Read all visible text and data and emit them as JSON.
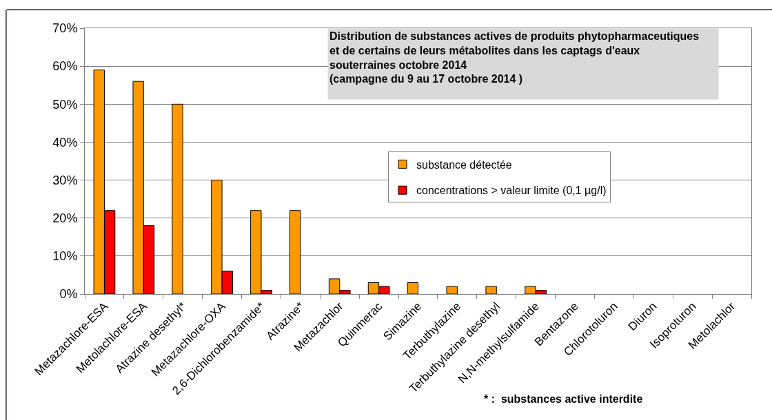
{
  "chart_data": {
    "type": "bar",
    "title": "Distribution de substances actives de produits phytopharmaceutiques\net de certains de leurs métabolites dans les captags d'eaux\nsouterraines octobre 2014\n(campagne du 9 au 17 octobre 2014 )",
    "categories": [
      "Metazachlore-ESA",
      "Metolachlore-ESA",
      "Atrazine desethyl*",
      "Metazachlore-OXA",
      "2,6-Dichlorobenzamide*",
      "Atrazine*",
      "Metazachlor",
      "Quinmerac",
      "Simazine",
      "Terbuthylazine",
      "Terbuthylazine desethyl",
      "N,N-methylsulfamide",
      "Bentazone",
      "Chlorotoluron",
      "Diuron",
      "Isoproturon",
      "Metolachlor"
    ],
    "series": [
      {
        "name": "substance détectée",
        "color": "#ff9900",
        "values": [
          59,
          56,
          50,
          30,
          22,
          22,
          4,
          3,
          3,
          2,
          2,
          2,
          0,
          0,
          0,
          0,
          0
        ]
      },
      {
        "name": "concentrations > valeur limite (0,1 µg/l)",
        "color": "#ff0000",
        "values": [
          22,
          18,
          0,
          6,
          1,
          0,
          1,
          2,
          0,
          0,
          0,
          1,
          0,
          0,
          0,
          0,
          0
        ]
      }
    ],
    "ylim": [
      0,
      70
    ],
    "yticks": [
      {
        "value": 0,
        "label": "0%"
      },
      {
        "value": 10,
        "label": "10%"
      },
      {
        "value": 20,
        "label": "20%"
      },
      {
        "value": 30,
        "label": "30%"
      },
      {
        "value": 40,
        "label": "40%"
      },
      {
        "value": 50,
        "label": "50%"
      },
      {
        "value": 60,
        "label": "60%"
      },
      {
        "value": 70,
        "label": "70%"
      }
    ],
    "grid": "y",
    "legend": "center right",
    "annotations": [
      "* :  substances active interdite"
    ]
  }
}
